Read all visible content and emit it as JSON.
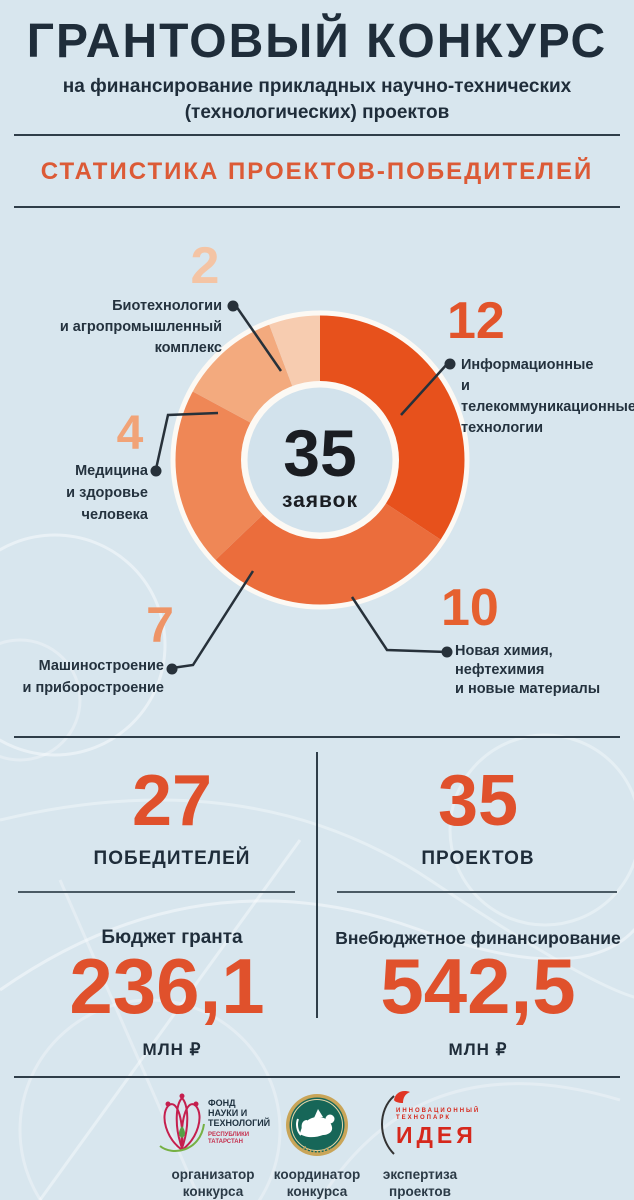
{
  "page": {
    "bg_color": "#d8e6ee",
    "accent_color": "#e0512c",
    "dark_color": "#1f2d3a"
  },
  "header": {
    "title": "ГРАНТОВЫЙ КОНКУРС",
    "subtitle_line1": "на финансирование прикладных научно-технических",
    "subtitle_line2": "(технологических) проектов",
    "section_title": "СТАТИСТИКА ПРОЕКТОВ-ПОБЕДИТЕЛЕЙ"
  },
  "chart_data": {
    "type": "pie",
    "variant": "donut",
    "title": "СТАТИСТИКА ПРОЕКТОВ-ПОБЕДИТЕЛЕЙ",
    "total": 35,
    "center": {
      "value": "35",
      "label": "заявок"
    },
    "start_angle_deg": 0,
    "direction": "clockwise",
    "categories": [
      "Информационные и телекоммуникационные технологии",
      "Новая химия, нефтехимия и новые материалы",
      "Машиностроение и приборостроение",
      "Медицина и здоровье человека",
      "Биотехнологии и агропромышленный комплекс"
    ],
    "values": [
      12,
      10,
      7,
      4,
      2
    ],
    "segments": [
      {
        "value": "12",
        "color": "#e7511c",
        "number_color": "#e2542b",
        "lines": [
          "Информационные",
          "и телекоммуникационные",
          "технологии"
        ]
      },
      {
        "value": "10",
        "color": "#eb6d3c",
        "number_color": "#e6602f",
        "lines": [
          "Новая химия,",
          "нефтехимия",
          "и новые материалы"
        ]
      },
      {
        "value": "7",
        "color": "#ef8756",
        "number_color": "#ee9466",
        "lines": [
          "Машиностроение",
          "и приборостроение"
        ]
      },
      {
        "value": "4",
        "color": "#f3aa7e",
        "number_color": "#f1a377",
        "lines": [
          "Медицина",
          "и здоровье человека"
        ]
      },
      {
        "value": "2",
        "color": "#f7ccb0",
        "number_color": "#f4c4a4",
        "lines": [
          "Биотехнологии",
          "и агропромышленный",
          "комплекс"
        ]
      }
    ]
  },
  "stats": {
    "winners": {
      "value": "27",
      "label": "ПОБЕДИТЕЛЕЙ"
    },
    "projects": {
      "value": "35",
      "label": "ПРОЕКТОВ"
    }
  },
  "funding": {
    "grant": {
      "title": "Бюджет гранта",
      "value": "236,1",
      "unit": "МЛН ₽"
    },
    "offbudget": {
      "title": "Внебюджетное финансирование",
      "value": "542,5",
      "unit": "МЛН ₽"
    }
  },
  "footer": {
    "logos": [
      {
        "icon": "fund-science-technology-logo",
        "text_lines": [
          "ФОНД",
          "НАУКИ И",
          "ТЕХНОЛОГИЙ"
        ],
        "sub_lines": [
          "РЕСПУБЛИКИ",
          "ТАТАРСТАН"
        ],
        "caption_lines": [
          "организатор",
          "конкурса"
        ]
      },
      {
        "icon": "tatarstan-emblem-logo",
        "caption_lines": [
          "координатор",
          "конкурса"
        ]
      },
      {
        "icon": "idea-technopark-logo",
        "top_lines": [
          "ИННОВАЦИОННЫЙ",
          "ТЕХНОПАРК"
        ],
        "big_text": "ИДЕЯ",
        "caption_lines": [
          "экспертиза",
          "проектов"
        ]
      }
    ]
  }
}
